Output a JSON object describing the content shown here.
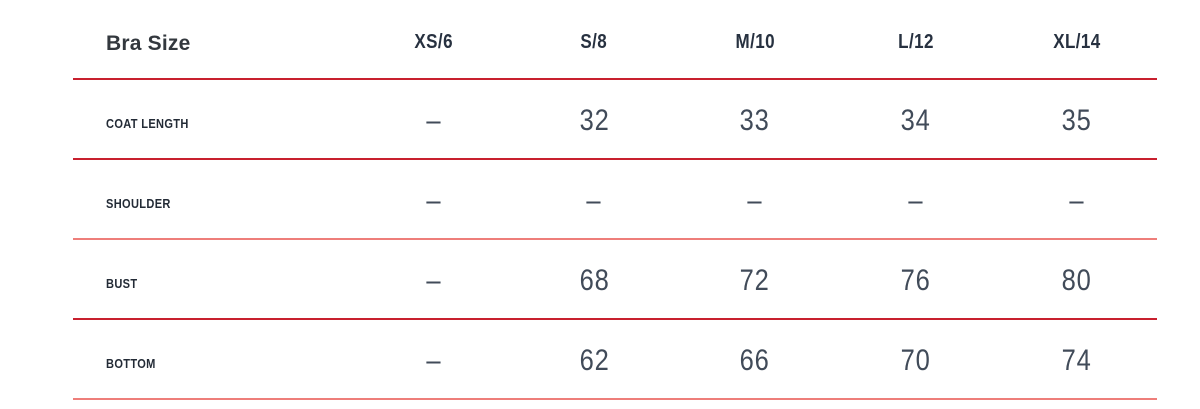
{
  "colors": {
    "accent_red": "#c8202e",
    "accent_red_light": "#ee7e7a",
    "title_text": "#33383e",
    "header_text": "#273140",
    "label_text": "#232b36",
    "value_text": "#414b59"
  },
  "size_chart": {
    "title": "Bra Size",
    "columns": [
      "XS/6",
      "S/8",
      "M/10",
      "L/12",
      "XL/14"
    ],
    "rows": [
      {
        "label": "COAT LENGTH",
        "values": [
          "–",
          "32",
          "33",
          "34",
          "35"
        ]
      },
      {
        "label": "SHOULDER",
        "values": [
          "–",
          "–",
          "–",
          "–",
          "–"
        ]
      },
      {
        "label": "BUST",
        "values": [
          "–",
          "68",
          "72",
          "76",
          "80"
        ]
      },
      {
        "label": "BOTTOM",
        "values": [
          "–",
          "62",
          "66",
          "70",
          "74"
        ]
      }
    ]
  }
}
